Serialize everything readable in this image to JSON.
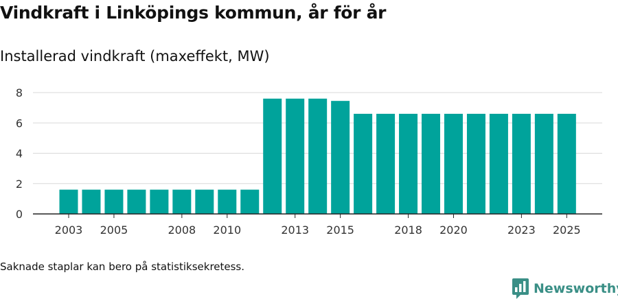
{
  "title": "Vindkraft i Linköpings kommun, år för år",
  "subtitle": "Installerad vindkraft (maxeffekt, MW)",
  "footnote": "Saknade staplar kan bero på statistiksekretess.",
  "brand": {
    "name": "Newsworthy",
    "icon": "newsworthy-logo-icon",
    "color": "#3a8f86"
  },
  "chart_data": {
    "type": "bar",
    "title": "Vindkraft i Linköpings kommun, år för år",
    "ylabel": "Installerad vindkraft (maxeffekt, MW)",
    "xlabel": "",
    "categories": [
      "2003",
      "2004",
      "2005",
      "2006",
      "2007",
      "2008",
      "2009",
      "2010",
      "2011",
      "2012",
      "2013",
      "2014",
      "2015",
      "2016",
      "2017",
      "2018",
      "2019",
      "2020",
      "2021",
      "2022",
      "2023",
      "2024",
      "2025"
    ],
    "values": [
      1.6,
      1.6,
      1.6,
      1.6,
      1.6,
      1.6,
      1.6,
      1.6,
      1.6,
      7.6,
      7.6,
      7.6,
      7.45,
      6.6,
      6.6,
      6.6,
      6.6,
      6.6,
      6.6,
      6.6,
      6.6,
      6.6,
      6.6
    ],
    "ylim": [
      0,
      8
    ],
    "yticks": [
      0,
      2,
      4,
      6,
      8
    ],
    "xtick_labels": [
      "2003",
      "2005",
      "2008",
      "2010",
      "2013",
      "2015",
      "2018",
      "2020",
      "2023",
      "2025"
    ],
    "bar_color": "#00a39b",
    "grid": true
  }
}
